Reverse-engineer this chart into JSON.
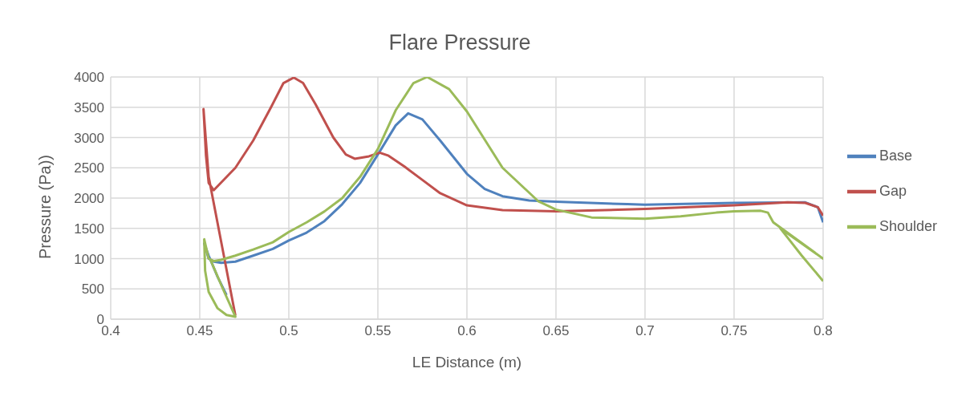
{
  "chart_data": {
    "type": "line",
    "title": "Flare Pressure",
    "xlabel": "LE Distance (m)",
    "ylabel": "Pressure (Pa))",
    "xlim": [
      0.4,
      0.8
    ],
    "xticks": [
      0.4,
      0.45,
      0.5,
      0.55,
      0.6,
      0.65,
      0.7,
      0.75,
      0.8
    ],
    "ylim": [
      0,
      4000
    ],
    "yticks": [
      0,
      500,
      1000,
      1500,
      2000,
      2500,
      3000,
      3500,
      4000
    ],
    "grid": true,
    "legend": "right",
    "marker": "none",
    "line_style": "solid",
    "series": [
      {
        "name": "Base",
        "color": "#4f81bd",
        "x": [
          0.465,
          0.46,
          0.455,
          0.4525,
          0.455,
          0.458,
          0.462,
          0.47,
          0.48,
          0.491,
          0.5,
          0.51,
          0.52,
          0.53,
          0.54,
          0.55,
          0.56,
          0.567,
          0.575,
          0.585,
          0.6,
          0.61,
          0.62,
          0.635,
          0.65,
          0.69,
          0.7,
          0.75,
          0.79,
          0.797,
          0.8
        ],
        "values": [
          400,
          700,
          1050,
          1250,
          1000,
          950,
          930,
          950,
          1050,
          1160,
          1300,
          1430,
          1620,
          1900,
          2250,
          2720,
          3200,
          3400,
          3300,
          2950,
          2400,
          2150,
          2030,
          1960,
          1940,
          1900,
          1890,
          1920,
          1930,
          1850,
          1600
        ]
      },
      {
        "name": "Gap",
        "color": "#c0504d",
        "x": [
          0.47,
          0.455,
          0.4521,
          0.4535,
          0.455,
          0.4578,
          0.47,
          0.48,
          0.49,
          0.497,
          0.5028,
          0.508,
          0.515,
          0.525,
          0.532,
          0.537,
          0.545,
          0.551,
          0.556,
          0.565,
          0.575,
          0.585,
          0.6,
          0.62,
          0.65,
          0.7,
          0.75,
          0.78,
          0.79,
          0.797,
          0.8
        ],
        "values": [
          60,
          2350,
          3470,
          2700,
          2250,
          2130,
          2500,
          2950,
          3500,
          3900,
          3990,
          3900,
          3550,
          3000,
          2720,
          2650,
          2690,
          2750,
          2700,
          2520,
          2300,
          2080,
          1880,
          1800,
          1780,
          1820,
          1880,
          1930,
          1920,
          1850,
          1710
        ]
      },
      {
        "name": "Shoulder",
        "color": "#9bbb59",
        "x": [
          0.8,
          0.788,
          0.78,
          0.776,
          0.8,
          0.772,
          0.769,
          0.765,
          0.75,
          0.74,
          0.72,
          0.7,
          0.67,
          0.65,
          0.64,
          0.62,
          0.6,
          0.59,
          0.5777,
          0.57,
          0.56,
          0.55,
          0.54,
          0.53,
          0.52,
          0.51,
          0.5,
          0.491,
          0.48,
          0.47,
          0.462,
          0.458,
          0.455,
          0.4525,
          0.453,
          0.455,
          0.46,
          0.465,
          0.47,
          0.463,
          0.456
        ],
        "values": [
          630,
          1050,
          1350,
          1500,
          1000,
          1600,
          1760,
          1790,
          1780,
          1760,
          1700,
          1660,
          1680,
          1810,
          1950,
          2500,
          3430,
          3800,
          4000,
          3900,
          3450,
          2810,
          2350,
          2000,
          1780,
          1600,
          1440,
          1270,
          1150,
          1050,
          980,
          960,
          1000,
          1320,
          800,
          450,
          180,
          70,
          40,
          500,
          980
        ]
      }
    ]
  }
}
